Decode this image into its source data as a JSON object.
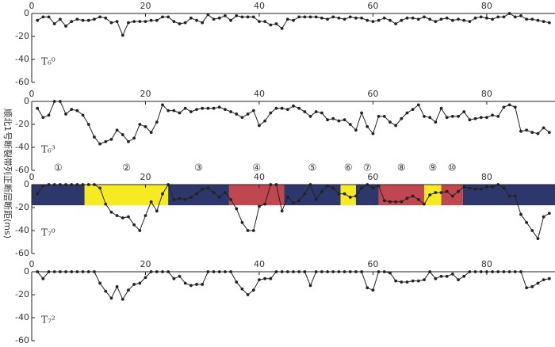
{
  "ylabel": "顺北1号断裂带列正断层断距(ms)",
  "chart_data": [
    {
      "type": "line",
      "label": "T₆⁰",
      "xlim": [
        0,
        92
      ],
      "ylim": [
        -60,
        0
      ],
      "xticks": [
        0,
        20,
        40,
        60,
        80
      ],
      "yticks": [
        0,
        -20,
        -40,
        -60
      ],
      "color": "#222",
      "x": [
        1,
        2,
        3,
        4,
        5,
        6,
        7,
        8,
        9,
        10,
        11,
        12,
        13,
        14,
        15,
        16,
        17,
        18,
        19,
        20,
        21,
        22,
        23,
        24,
        25,
        26,
        27,
        28,
        29,
        30,
        31,
        32,
        33,
        34,
        35,
        36,
        37,
        38,
        39,
        40,
        41,
        42,
        43,
        44,
        45,
        46,
        47,
        48,
        49,
        50,
        51,
        52,
        53,
        54,
        55,
        56,
        57,
        58,
        59,
        60,
        61,
        62,
        63,
        64,
        65,
        66,
        67,
        68,
        69,
        70,
        71,
        72,
        73,
        74,
        75,
        76,
        77,
        78,
        79,
        80,
        81,
        82,
        83,
        84,
        85,
        86,
        87,
        88,
        89,
        90,
        91
      ],
      "values": [
        -6,
        -3,
        -3,
        -9,
        -5,
        -11,
        -7,
        -5,
        -6,
        -6,
        -5,
        -3,
        -4,
        -8,
        -7,
        -19,
        -8,
        -7,
        -7,
        -7,
        -6,
        -6,
        -3,
        -3,
        -7,
        -9,
        -8,
        -4,
        -6,
        -8,
        -1,
        -5,
        -4,
        -2,
        -6,
        -2,
        -3,
        -3,
        -3,
        -7,
        -7,
        -10,
        -9,
        -13,
        -5,
        -6,
        -3,
        -3,
        -3,
        -3,
        -4,
        -5,
        -3,
        -4,
        -5,
        -3,
        -4,
        -4,
        -6,
        -7,
        -6,
        -4,
        -6,
        -9,
        -6,
        -4,
        -4,
        -5,
        -3,
        -5,
        -7,
        -5,
        -4,
        -6,
        -5,
        -6,
        -7,
        -4,
        -3,
        -4,
        -5,
        -3,
        -3,
        0,
        -3,
        -2,
        -5,
        -5,
        -6,
        -7,
        -8
      ]
    },
    {
      "type": "line",
      "label": "T₆³",
      "xlim": [
        0,
        92
      ],
      "ylim": [
        -60,
        0
      ],
      "xticks": [
        0,
        20,
        40,
        60,
        80
      ],
      "yticks": [
        0,
        -20,
        -40,
        -60
      ],
      "color": "#222",
      "x": [
        1,
        2,
        3,
        4,
        5,
        6,
        7,
        8,
        9,
        10,
        11,
        12,
        13,
        14,
        15,
        16,
        17,
        18,
        19,
        20,
        21,
        22,
        23,
        24,
        25,
        26,
        27,
        28,
        29,
        30,
        31,
        32,
        33,
        34,
        35,
        36,
        37,
        38,
        39,
        40,
        41,
        42,
        43,
        44,
        45,
        46,
        47,
        48,
        49,
        50,
        51,
        52,
        53,
        54,
        55,
        56,
        57,
        58,
        59,
        60,
        61,
        62,
        63,
        64,
        65,
        66,
        67,
        68,
        69,
        70,
        71,
        72,
        73,
        74,
        75,
        76,
        77,
        78,
        79,
        80,
        81,
        82,
        83,
        84,
        85,
        86,
        87,
        88,
        89,
        90,
        91
      ],
      "values": [
        -6,
        -14,
        -12,
        0,
        0,
        -11,
        -7,
        -8,
        -12,
        -20,
        -31,
        -37,
        -35,
        -33,
        -25,
        -29,
        -35,
        -32,
        -20,
        -22,
        -27,
        -18,
        -3,
        -8,
        -8,
        -10,
        -6,
        -9,
        -7,
        -6,
        -6,
        -6,
        -5,
        -7,
        -9,
        -11,
        -14,
        -11,
        -8,
        -21,
        -17,
        -10,
        -6,
        -6,
        -7,
        -4,
        -6,
        -9,
        -13,
        -9,
        -10,
        -16,
        -15,
        -17,
        -16,
        -20,
        -25,
        -10,
        -22,
        -28,
        -13,
        -13,
        -18,
        -21,
        -15,
        -10,
        -7,
        -3,
        -13,
        -14,
        -18,
        -6,
        -14,
        -13,
        -13,
        -9,
        -16,
        -15,
        -14,
        -14,
        -12,
        -13,
        -5,
        -3,
        -5,
        -26,
        -25,
        -27,
        -28,
        -23,
        -27
      ]
    },
    {
      "type": "line",
      "label": "T₇⁰",
      "xlim": [
        0,
        92
      ],
      "ylim": [
        -60,
        0
      ],
      "xticks": [
        0,
        20,
        40,
        60,
        80
      ],
      "yticks": [
        0,
        -20,
        -40,
        -60
      ],
      "color": "#222",
      "band_depth": -18,
      "bands": [
        {
          "start": 0,
          "end": 9.3,
          "color": "#2e376b",
          "label": "①"
        },
        {
          "start": 9.3,
          "end": 24,
          "color": "#f6ea22",
          "label": "②"
        },
        {
          "start": 24,
          "end": 34.7,
          "color": "#2e376b",
          "label": "③"
        },
        {
          "start": 34.7,
          "end": 44.4,
          "color": "#c0474f",
          "label": "④"
        },
        {
          "start": 44.4,
          "end": 54.3,
          "color": "#2e376b",
          "label": "⑤"
        },
        {
          "start": 54.3,
          "end": 57,
          "color": "#f6ea22",
          "label": "⑥"
        },
        {
          "start": 57,
          "end": 61,
          "color": "#2e376b",
          "label": "⑦"
        },
        {
          "start": 61,
          "end": 69,
          "color": "#c0474f",
          "label": "⑧"
        },
        {
          "start": 69,
          "end": 72,
          "color": "#f6ea22",
          "label": "⑨"
        },
        {
          "start": 72,
          "end": 75.8,
          "color": "#c0474f",
          "label": "⑩"
        },
        {
          "start": 75.8,
          "end": 92,
          "color": "#2e376b"
        }
      ],
      "x": [
        1,
        2,
        3,
        4,
        5,
        6,
        7,
        8,
        9,
        10,
        11,
        12,
        13,
        14,
        15,
        16,
        17,
        18,
        19,
        20,
        21,
        22,
        23,
        24,
        25,
        26,
        27,
        28,
        29,
        30,
        31,
        32,
        33,
        34,
        35,
        36,
        37,
        38,
        39,
        40,
        41,
        42,
        43,
        44,
        45,
        46,
        47,
        48,
        49,
        50,
        51,
        52,
        53,
        54,
        55,
        56,
        57,
        58,
        59,
        60,
        61,
        62,
        63,
        64,
        65,
        66,
        67,
        68,
        69,
        70,
        71,
        72,
        73,
        74,
        75,
        76,
        77,
        78,
        79,
        80,
        81,
        82,
        83,
        84,
        85,
        86,
        87,
        88,
        89,
        90,
        91
      ],
      "values": [
        -8,
        -1,
        0,
        0,
        0,
        0,
        0,
        0,
        0,
        0,
        0,
        -3,
        -17,
        -24,
        -27,
        -29,
        -28,
        -35,
        -40,
        -27,
        -15,
        -23,
        -8,
        0,
        -13,
        -12,
        -13,
        -11,
        -8,
        -4,
        -3,
        -7,
        -11,
        -7,
        -13,
        -21,
        -33,
        -40,
        -40,
        -19,
        -17,
        0,
        0,
        -23,
        -11,
        -16,
        -14,
        -8,
        0,
        -13,
        -6,
        -1,
        -3,
        -8,
        -8,
        -11,
        -10,
        -3,
        0,
        -3,
        -1,
        -14,
        -15,
        -15,
        -15,
        -12,
        -10,
        -13,
        -17,
        -9,
        -7,
        -7,
        -6,
        -10,
        -6,
        -2,
        -3,
        -4,
        -4,
        -2,
        -2,
        0,
        -3,
        -10,
        -10,
        -26,
        -33,
        -40,
        -47,
        -28,
        -25
      ]
    },
    {
      "type": "line",
      "label": "T₇²",
      "xlim": [
        0,
        92
      ],
      "ylim": [
        -60,
        0
      ],
      "xticks": [
        0,
        20,
        40,
        60,
        80
      ],
      "yticks": [
        0,
        -20,
        -40,
        -60
      ],
      "color": "#222",
      "x": [
        1,
        2,
        3,
        4,
        5,
        6,
        7,
        8,
        9,
        10,
        11,
        12,
        13,
        14,
        15,
        16,
        17,
        18,
        19,
        20,
        21,
        22,
        23,
        24,
        25,
        26,
        27,
        28,
        29,
        30,
        31,
        32,
        33,
        34,
        35,
        36,
        37,
        38,
        39,
        40,
        41,
        42,
        43,
        44,
        45,
        46,
        47,
        48,
        49,
        50,
        51,
        52,
        53,
        54,
        55,
        56,
        57,
        58,
        59,
        60,
        61,
        62,
        63,
        64,
        65,
        66,
        67,
        68,
        69,
        70,
        71,
        72,
        73,
        74,
        75,
        76,
        77,
        78,
        79,
        80,
        81,
        82,
        83,
        84,
        85,
        86,
        87,
        88,
        89,
        90,
        91
      ],
      "values": [
        0,
        -6,
        0,
        0,
        0,
        0,
        0,
        0,
        0,
        0,
        0,
        -10,
        -17,
        -23,
        -13,
        -24,
        -16,
        -11,
        -10,
        -5,
        0,
        0,
        0,
        0,
        -6,
        -4,
        -10,
        -12,
        -11,
        -11,
        0,
        0,
        0,
        0,
        0,
        -9,
        -15,
        -20,
        -16,
        -7,
        -6,
        -6,
        0,
        0,
        0,
        0,
        0,
        0,
        -12,
        0,
        0,
        0,
        0,
        0,
        0,
        0,
        0,
        0,
        -14,
        -16,
        0,
        0,
        -1,
        -8,
        -9,
        -9,
        -8,
        -8,
        -7,
        0,
        -6,
        -4,
        -4,
        -2,
        -7,
        -4,
        0,
        0,
        0,
        0,
        0,
        0,
        0,
        0,
        0,
        0,
        -14,
        -13,
        -10,
        -7,
        -6
      ]
    }
  ]
}
